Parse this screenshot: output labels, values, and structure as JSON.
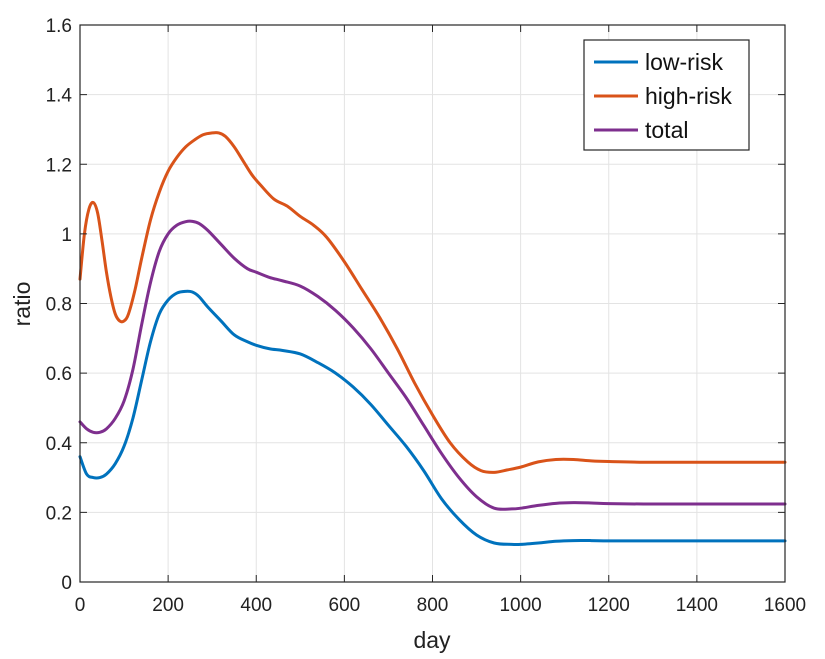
{
  "chart_data": {
    "type": "line",
    "title": "",
    "xlabel": "day",
    "ylabel": "ratio",
    "xlim": [
      0,
      1600
    ],
    "ylim": [
      0,
      1.6
    ],
    "xticks": [
      0,
      200,
      400,
      600,
      800,
      1000,
      1200,
      1400,
      1600
    ],
    "xtick_labels": [
      "0",
      "200",
      "400",
      "600",
      "800",
      "1000",
      "1200",
      "1400",
      "1600"
    ],
    "yticks": [
      0,
      0.2,
      0.4,
      0.6,
      0.8,
      1.0,
      1.2,
      1.4,
      1.6
    ],
    "ytick_labels": [
      "0",
      "0.2",
      "0.4",
      "0.6",
      "0.8",
      "1",
      "1.2",
      "1.4",
      "1.6"
    ],
    "grid": true,
    "legend_position": "top-right",
    "series": [
      {
        "name": "low-risk",
        "color": "#0072BD",
        "x": [
          0,
          15,
          30,
          45,
          60,
          80,
          100,
          120,
          140,
          160,
          180,
          200,
          220,
          240,
          255,
          270,
          290,
          320,
          350,
          380,
          400,
          430,
          460,
          500,
          540,
          580,
          620,
          660,
          700,
          740,
          780,
          820,
          860,
          900,
          940,
          980,
          1000,
          1040,
          1080,
          1120,
          1160,
          1200,
          1280,
          1400,
          1500,
          1600
        ],
        "values": [
          0.36,
          0.31,
          0.3,
          0.3,
          0.31,
          0.34,
          0.39,
          0.47,
          0.58,
          0.69,
          0.77,
          0.81,
          0.83,
          0.835,
          0.833,
          0.82,
          0.79,
          0.75,
          0.71,
          0.69,
          0.68,
          0.67,
          0.665,
          0.655,
          0.63,
          0.6,
          0.56,
          0.51,
          0.45,
          0.39,
          0.32,
          0.24,
          0.18,
          0.135,
          0.112,
          0.108,
          0.108,
          0.112,
          0.117,
          0.119,
          0.119,
          0.118,
          0.118,
          0.118,
          0.118,
          0.118
        ]
      },
      {
        "name": "high-risk",
        "color": "#D95319",
        "x": [
          0,
          10,
          20,
          30,
          40,
          50,
          60,
          70,
          80,
          90,
          100,
          110,
          125,
          140,
          160,
          180,
          200,
          220,
          240,
          260,
          280,
          300,
          315,
          330,
          350,
          370,
          390,
          410,
          440,
          470,
          500,
          530,
          560,
          600,
          640,
          680,
          720,
          760,
          800,
          840,
          880,
          910,
          940,
          970,
          1000,
          1040,
          1080,
          1120,
          1160,
          1200,
          1280,
          1400,
          1500,
          1600
        ],
        "values": [
          0.87,
          1.0,
          1.07,
          1.09,
          1.06,
          0.98,
          0.89,
          0.82,
          0.77,
          0.75,
          0.75,
          0.77,
          0.84,
          0.93,
          1.04,
          1.12,
          1.18,
          1.22,
          1.25,
          1.27,
          1.285,
          1.29,
          1.29,
          1.28,
          1.25,
          1.21,
          1.17,
          1.14,
          1.1,
          1.08,
          1.05,
          1.025,
          0.99,
          0.92,
          0.84,
          0.76,
          0.67,
          0.57,
          0.48,
          0.4,
          0.345,
          0.32,
          0.315,
          0.322,
          0.33,
          0.345,
          0.352,
          0.352,
          0.348,
          0.346,
          0.344,
          0.344,
          0.344,
          0.344
        ]
      },
      {
        "name": "total",
        "color": "#7E2F8E",
        "x": [
          0,
          15,
          30,
          45,
          60,
          80,
          100,
          120,
          140,
          160,
          180,
          200,
          220,
          240,
          255,
          270,
          290,
          320,
          350,
          380,
          400,
          430,
          460,
          500,
          540,
          580,
          620,
          660,
          700,
          740,
          780,
          820,
          860,
          900,
          940,
          980,
          1000,
          1040,
          1080,
          1120,
          1160,
          1200,
          1280,
          1400,
          1500,
          1600
        ],
        "values": [
          0.46,
          0.44,
          0.43,
          0.43,
          0.44,
          0.47,
          0.52,
          0.61,
          0.74,
          0.86,
          0.95,
          1.0,
          1.025,
          1.035,
          1.036,
          1.03,
          1.01,
          0.97,
          0.93,
          0.9,
          0.89,
          0.875,
          0.865,
          0.85,
          0.82,
          0.78,
          0.73,
          0.67,
          0.6,
          0.53,
          0.45,
          0.37,
          0.3,
          0.245,
          0.212,
          0.21,
          0.212,
          0.22,
          0.226,
          0.228,
          0.227,
          0.225,
          0.224,
          0.224,
          0.224,
          0.224
        ]
      }
    ]
  }
}
